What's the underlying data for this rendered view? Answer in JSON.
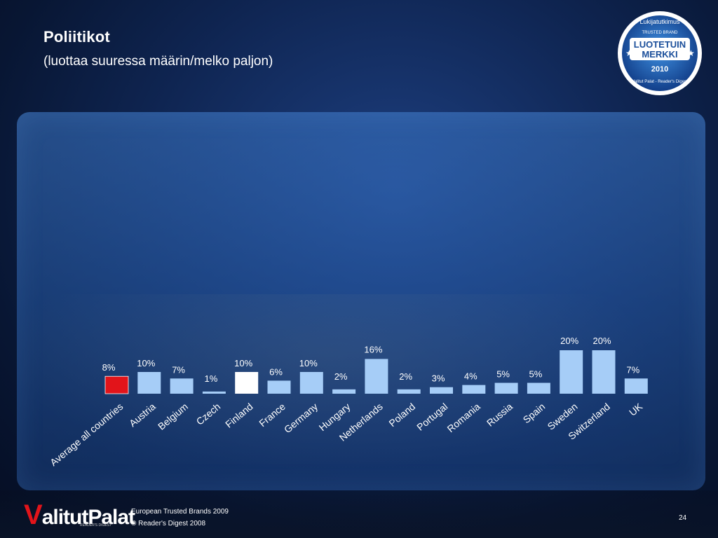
{
  "title": "Poliitikot",
  "subtitle": "(luottaa suuressa määrin/melko paljon)",
  "badge": {
    "top_text": "Lukijatutkimus",
    "ribbon": "TRUSTED BRAND",
    "main1": "LUOTETUIN",
    "main2": "MERKKI",
    "year": "2010",
    "bottom_text": "Valitut Palat - Reader's Digest"
  },
  "footer": {
    "logo_v": "V",
    "logo_rest": "alitutPalat",
    "logo_sub": "READER'S DIGEST",
    "line1": "European Trusted Brands 2009",
    "line2": "© Reader's Digest 2008",
    "page": "24"
  },
  "colors": {
    "bar_default": "#a6cdf7",
    "bar_average": "#e2141a",
    "bar_highlight": "#ffffff"
  },
  "chart_data": {
    "type": "bar",
    "title": "Poliitikot",
    "subtitle": "(luottaa suuressa määrin/melko paljon)",
    "xlabel": "",
    "ylabel": "",
    "ylim": [
      0,
      20
    ],
    "grid": false,
    "legend": "none",
    "categories": [
      "Average all countries",
      "Austria",
      "Belgium",
      "Czech",
      "Finland",
      "France",
      "Germany",
      "Hungary",
      "Netherlands",
      "Poland",
      "Portugal",
      "Romania",
      "Russia",
      "Spain",
      "Sweden",
      "Switzerland",
      "UK"
    ],
    "values": [
      8,
      10,
      7,
      1,
      10,
      6,
      10,
      2,
      16,
      2,
      3,
      4,
      5,
      5,
      20,
      20,
      7
    ],
    "value_labels": [
      "8%",
      "10%",
      "7%",
      "1%",
      "10%",
      "6%",
      "10%",
      "2%",
      "16%",
      "2%",
      "3%",
      "4%",
      "5%",
      "5%",
      "20%",
      "20%",
      "7%"
    ],
    "highlight": [
      "average",
      "default",
      "default",
      "default",
      "highlight",
      "default",
      "default",
      "default",
      "default",
      "default",
      "default",
      "default",
      "default",
      "default",
      "default",
      "default",
      "default"
    ]
  }
}
